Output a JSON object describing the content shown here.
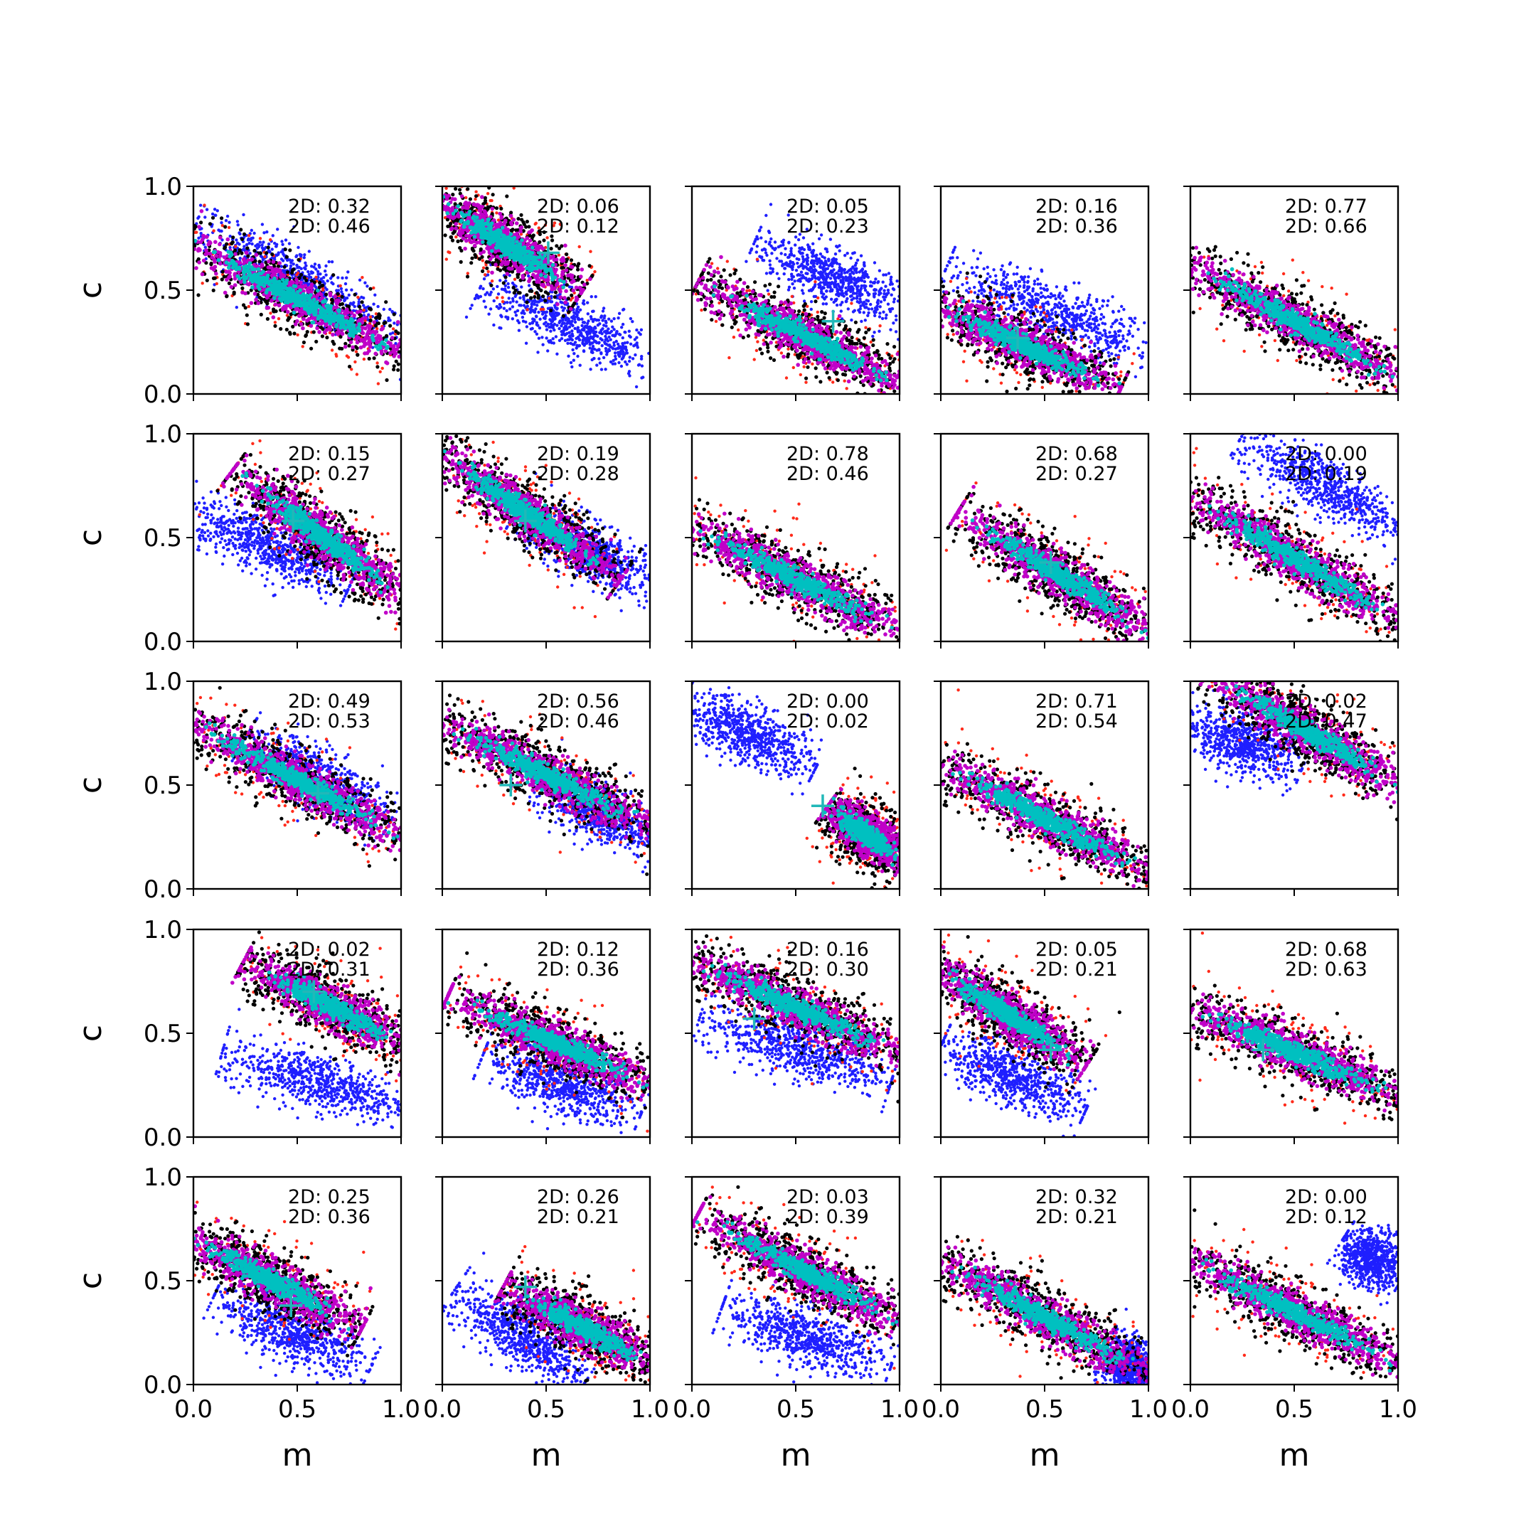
{
  "chart_data": {
    "type": "scatter",
    "layout": {
      "rows": 5,
      "cols": 5
    },
    "xlabel": "m",
    "ylabel": "c",
    "xlim": [
      0.0,
      1.0
    ],
    "ylim": [
      0.0,
      1.0
    ],
    "xticks": [
      "0.0",
      "0.5",
      "1.0"
    ],
    "yticks": [
      "0.0",
      "0.5",
      "1.0"
    ],
    "colors": {
      "blue": "#1f1fff",
      "red": "#ff2a1a",
      "black": "#000000",
      "magenta": "#c000c8",
      "cyan": "#00c0c0",
      "marker": "#21b8b8"
    },
    "panels": [
      {
        "anno": [
          "2D: 0.32",
          "2D: 0.46"
        ],
        "main": [
          0.0,
          0.72,
          1.0,
          0.2
        ],
        "blue": [
          0.0,
          0.84,
          1.0,
          0.26
        ],
        "marker": null
      },
      {
        "anno": [
          "2D: 0.06",
          "2D: 0.12"
        ],
        "main": [
          0.0,
          0.92,
          0.62,
          0.52
        ],
        "blue": [
          0.25,
          0.5,
          1.0,
          0.15
        ],
        "marker": [
          0.51,
          0.68
        ]
      },
      {
        "anno": [
          "2D: 0.05",
          "2D: 0.23"
        ],
        "main": [
          0.1,
          0.5,
          1.0,
          0.05
        ],
        "blue": [
          0.35,
          0.7,
          1.0,
          0.42
        ],
        "marker": [
          0.68,
          0.35
        ]
      },
      {
        "anno": [
          "2D: 0.16",
          "2D: 0.36"
        ],
        "main": [
          0.0,
          0.42,
          0.8,
          0.05
        ],
        "blue": [
          0.1,
          0.58,
          1.0,
          0.2
        ],
        "marker": [
          0.37,
          0.27
        ]
      },
      {
        "anno": [
          "2D: 0.77",
          "2D: 0.66"
        ],
        "main": [
          0.0,
          0.62,
          1.0,
          0.08
        ],
        "blue": null,
        "marker": null
      },
      {
        "anno": [
          "2D: 0.15",
          "2D: 0.27"
        ],
        "main": [
          0.25,
          0.78,
          1.0,
          0.22
        ],
        "blue": [
          0.0,
          0.62,
          0.7,
          0.3
        ],
        "marker": [
          0.48,
          0.58
        ]
      },
      {
        "anno": [
          "2D: 0.19",
          "2D: 0.28"
        ],
        "main": [
          0.0,
          0.9,
          0.8,
          0.35
        ],
        "blue": [
          0.4,
          0.6,
          1.0,
          0.28
        ],
        "marker": [
          0.4,
          0.58
        ]
      },
      {
        "anno": [
          "2D: 0.78",
          "2D: 0.46"
        ],
        "main": [
          0.0,
          0.55,
          1.0,
          0.05
        ],
        "blue": null,
        "marker": null
      },
      {
        "anno": [
          "2D: 0.68",
          "2D: 0.27"
        ],
        "main": [
          0.15,
          0.58,
          1.0,
          0.05
        ],
        "blue": null,
        "marker": [
          0.53,
          0.38
        ]
      },
      {
        "anno": [
          "2D: 0.00",
          "2D: 0.19"
        ],
        "main": [
          0.0,
          0.7,
          1.0,
          0.1
        ],
        "blue": [
          0.3,
          0.95,
          1.0,
          0.55
        ],
        "marker": null
      },
      {
        "anno": [
          "2D: 0.49",
          "2D: 0.53"
        ],
        "main": [
          0.0,
          0.8,
          1.0,
          0.25
        ],
        "blue": [
          0.3,
          0.7,
          0.9,
          0.35
        ],
        "marker": [
          0.6,
          0.46
        ]
      },
      {
        "anno": [
          "2D: 0.56",
          "2D: 0.46"
        ],
        "main": [
          0.0,
          0.8,
          1.0,
          0.3
        ],
        "blue": [
          0.5,
          0.5,
          1.0,
          0.25
        ],
        "marker": [
          0.33,
          0.5
        ]
      },
      {
        "anno": [
          "2D: 0.00",
          "2D: 0.02"
        ],
        "main": [
          0.68,
          0.38,
          1.0,
          0.15
        ],
        "blue": [
          0.0,
          0.88,
          0.55,
          0.6
        ],
        "marker": [
          0.63,
          0.4
        ]
      },
      {
        "anno": [
          "2D: 0.71",
          "2D: 0.54"
        ],
        "main": [
          0.0,
          0.6,
          1.0,
          0.08
        ],
        "blue": null,
        "marker": null
      },
      {
        "anno": [
          "2D: 0.02",
          "2D: 0.47"
        ],
        "main": [
          0.15,
          1.0,
          1.0,
          0.5
        ],
        "blue": [
          0.0,
          0.8,
          0.5,
          0.6
        ],
        "marker": null
      },
      {
        "anno": [
          "2D: 0.02",
          "2D: 0.31"
        ],
        "main": [
          0.3,
          0.82,
          1.0,
          0.45
        ],
        "blue": [
          0.2,
          0.38,
          1.0,
          0.15
        ],
        "marker": [
          0.58,
          0.7
        ]
      },
      {
        "anno": [
          "2D: 0.12",
          "2D: 0.36"
        ],
        "main": [
          0.1,
          0.65,
          1.0,
          0.25
        ],
        "blue": [
          0.25,
          0.38,
          0.9,
          0.12
        ],
        "marker": null
      },
      {
        "anno": [
          "2D: 0.16",
          "2D: 0.30"
        ],
        "main": [
          0.0,
          0.85,
          1.0,
          0.4
        ],
        "blue": [
          0.1,
          0.55,
          0.9,
          0.3
        ],
        "marker": [
          0.3,
          0.57
        ]
      },
      {
        "anno": [
          "2D: 0.05",
          "2D: 0.21"
        ],
        "main": [
          0.0,
          0.8,
          0.65,
          0.38
        ],
        "blue": [
          0.05,
          0.42,
          0.65,
          0.15
        ],
        "marker": [
          0.53,
          0.42
        ]
      },
      {
        "anno": [
          "2D: 0.68",
          "2D: 0.63"
        ],
        "main": [
          0.0,
          0.62,
          1.0,
          0.2
        ],
        "blue": null,
        "marker": [
          0.35,
          0.42
        ]
      },
      {
        "anno": [
          "2D: 0.25",
          "2D: 0.36"
        ],
        "main": [
          0.0,
          0.7,
          0.75,
          0.3
        ],
        "blue": [
          0.15,
          0.4,
          0.8,
          0.1
        ],
        "marker": [
          0.47,
          0.38
        ]
      },
      {
        "anno": [
          "2D: 0.26",
          "2D: 0.21"
        ],
        "main": [
          0.35,
          0.45,
          1.0,
          0.1
        ],
        "blue": [
          0.1,
          0.42,
          0.65,
          0.05
        ],
        "marker": [
          0.4,
          0.47
        ]
      },
      {
        "anno": [
          "2D: 0.03",
          "2D: 0.39"
        ],
        "main": [
          0.1,
          0.78,
          1.0,
          0.3
        ],
        "blue": [
          0.2,
          0.35,
          0.9,
          0.1
        ],
        "marker": null
      },
      {
        "anno": [
          "2D: 0.32",
          "2D: 0.21"
        ],
        "main": [
          0.0,
          0.6,
          1.0,
          0.05
        ],
        "blue": [
          0.8,
          0.15,
          1.0,
          0.05
        ],
        "marker": null
      },
      {
        "anno": [
          "2D: 0.00",
          "2D: 0.12"
        ],
        "main": [
          0.0,
          0.6,
          1.0,
          0.1
        ],
        "blue": [
          0.75,
          0.68,
          1.0,
          0.52
        ],
        "marker": null
      }
    ]
  }
}
